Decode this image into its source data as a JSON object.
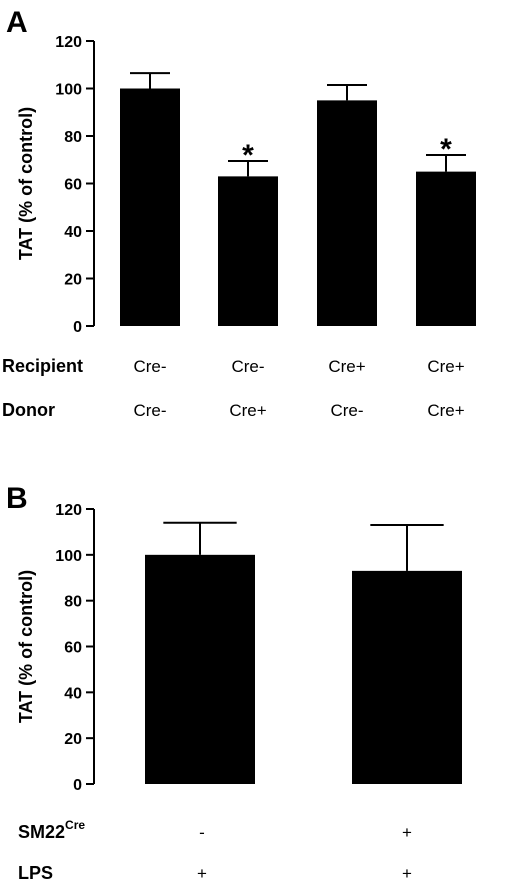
{
  "chart_data": [
    {
      "panel": "A",
      "type": "bar",
      "ylabel": "TAT (% of control)",
      "ylim": [
        0,
        120
      ],
      "yticks": [
        0,
        20,
        40,
        60,
        80,
        100,
        120
      ],
      "values": [
        100,
        63,
        95,
        65
      ],
      "errors": [
        6.5,
        6.5,
        6.5,
        7
      ],
      "annotations": [
        "",
        "*",
        "",
        "*"
      ],
      "condition_rows": [
        {
          "label": "Recipient",
          "values": [
            "Cre-",
            "Cre-",
            "Cre+",
            "Cre+"
          ]
        },
        {
          "label": "Donor",
          "values": [
            "Cre-",
            "Cre+",
            "Cre-",
            "Cre+"
          ]
        }
      ],
      "bar_color": "#000000"
    },
    {
      "panel": "B",
      "type": "bar",
      "ylabel": "TAT (% of control)",
      "ylim": [
        0,
        120
      ],
      "yticks": [
        0,
        20,
        40,
        60,
        80,
        100,
        120
      ],
      "values": [
        100,
        93
      ],
      "errors": [
        14,
        20
      ],
      "annotations": [
        "",
        ""
      ],
      "condition_rows": [
        {
          "label": "SM22",
          "label_sup": "Cre",
          "values": [
            "-",
            "+"
          ]
        },
        {
          "label": "LPS",
          "values": [
            "+",
            "+"
          ]
        }
      ],
      "bar_color": "#000000"
    }
  ]
}
